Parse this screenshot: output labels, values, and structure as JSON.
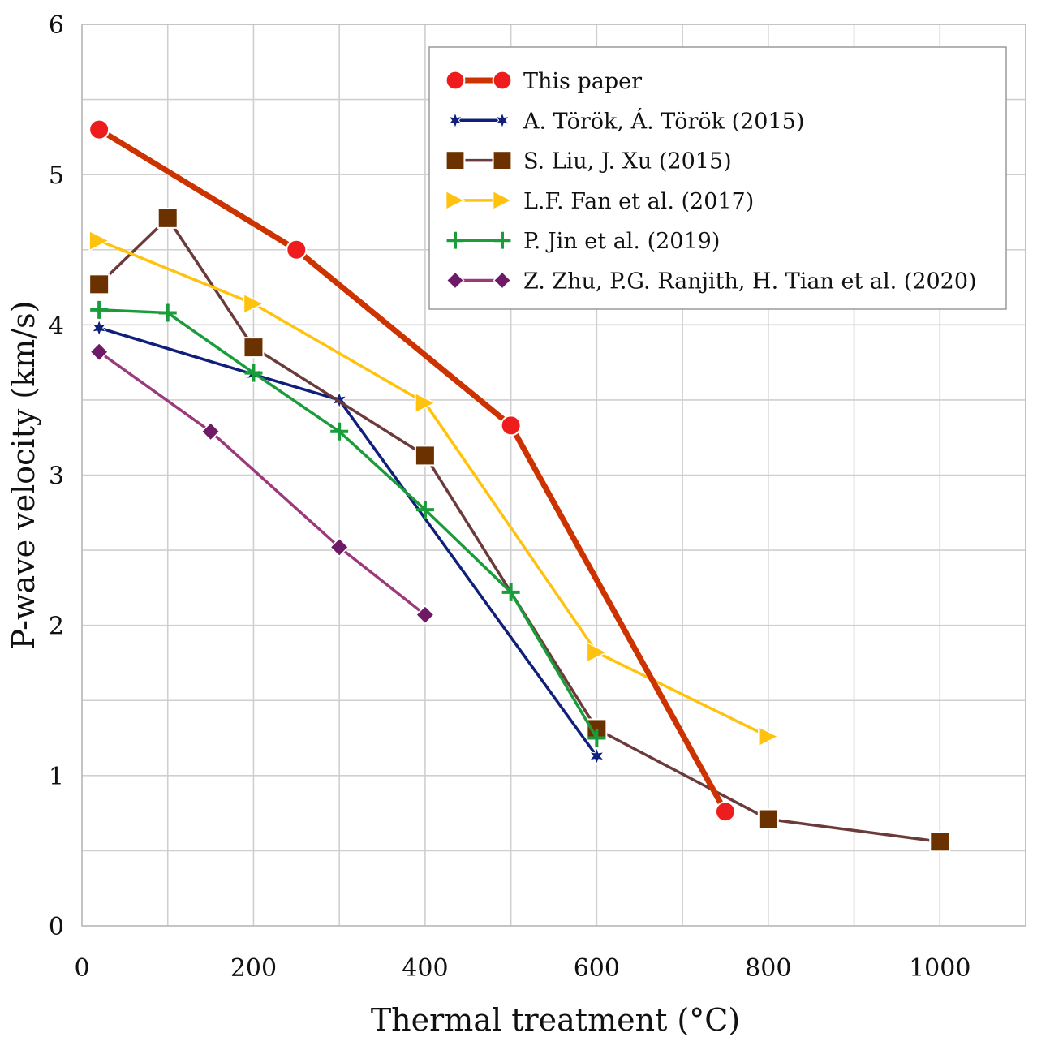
{
  "chart_data": {
    "type": "line",
    "title": "",
    "xlabel": "Thermal treatment (°C)",
    "ylabel": "P-wave velocity (km/s)",
    "xlim": [
      0,
      1100
    ],
    "ylim": [
      0,
      6
    ],
    "x_ticks": [
      0,
      200,
      400,
      600,
      800,
      1000
    ],
    "x_tick_labels": [
      "0",
      "200",
      "400",
      "600",
      "800",
      "1000"
    ],
    "y_ticks": [
      0,
      1,
      2,
      3,
      4,
      5,
      6
    ],
    "y_tick_labels": [
      "0",
      "1",
      "2",
      "3",
      "4",
      "5",
      "6"
    ],
    "x_grid_step": 100,
    "y_grid_step": 0.5,
    "grid": true,
    "legend_position": "top-right",
    "series": [
      {
        "name": "This paper",
        "color": "#cc3300",
        "marker_color": "#ee1c1c",
        "marker": "circle",
        "x": [
          20,
          250,
          500,
          750
        ],
        "y": [
          5.3,
          4.5,
          3.33,
          0.76
        ]
      },
      {
        "name": "A. Török, Á. Török (2015)",
        "color": "#0f1f7a",
        "marker_color": "#0f1f7a",
        "marker": "star",
        "x": [
          20,
          200,
          300,
          600
        ],
        "y": [
          3.98,
          3.67,
          3.5,
          1.13
        ]
      },
      {
        "name": "S. Liu, J. Xu (2015)",
        "color": "#6b3a3a",
        "marker_color": "#6b3200",
        "marker": "square",
        "x": [
          20,
          100,
          200,
          400,
          600,
          800,
          1000
        ],
        "y": [
          4.27,
          4.71,
          3.85,
          3.13,
          1.31,
          0.71,
          0.56
        ]
      },
      {
        "name": "L.F. Fan et al. (2017)",
        "color": "#ffc20e",
        "marker_color": "#ffc20e",
        "marker": "triangle-right",
        "x": [
          20,
          200,
          400,
          600,
          800
        ],
        "y": [
          4.56,
          4.14,
          3.48,
          1.82,
          1.26
        ]
      },
      {
        "name": "P. Jin et al. (2019)",
        "color": "#1a9c3a",
        "marker_color": "#1a9c3a",
        "marker": "plus",
        "x": [
          20,
          100,
          200,
          300,
          400,
          500,
          600
        ],
        "y": [
          4.1,
          4.08,
          3.68,
          3.29,
          2.77,
          2.22,
          1.25
        ]
      },
      {
        "name": "Z. Zhu, P.G. Ranjith, H. Tian et al. (2020)",
        "color": "#9b3a7a",
        "marker_color": "#6e1a66",
        "marker": "diamond",
        "x": [
          20,
          150,
          300,
          400
        ],
        "y": [
          3.82,
          3.29,
          2.52,
          2.07
        ]
      }
    ]
  }
}
